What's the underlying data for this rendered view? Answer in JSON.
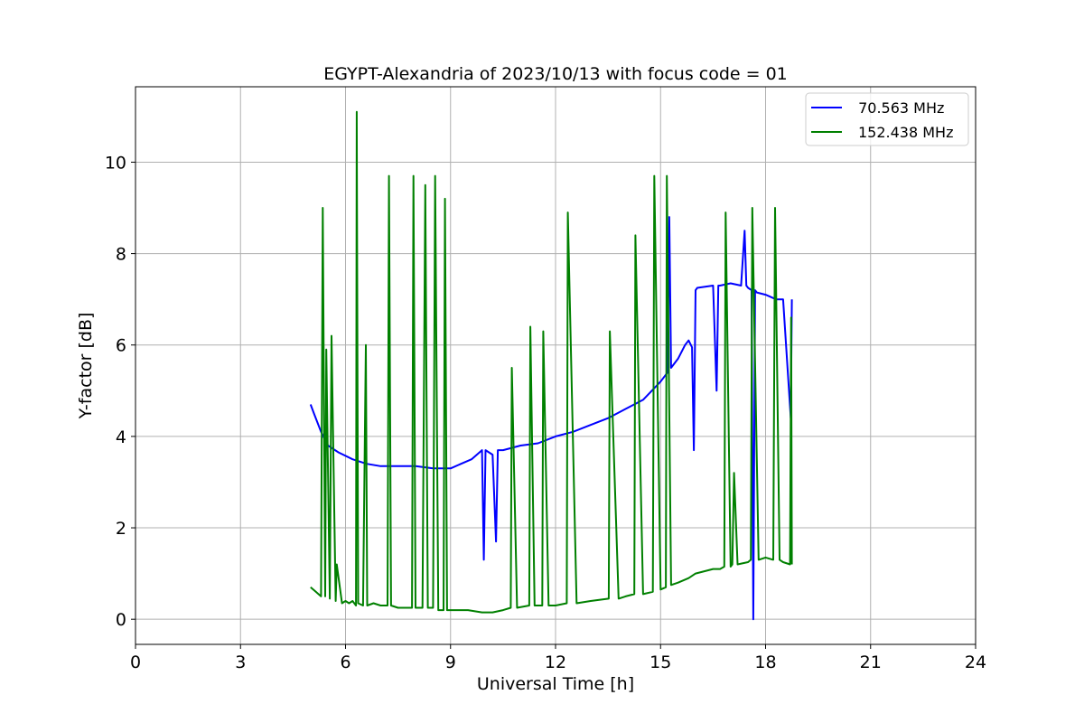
{
  "chart_data": {
    "type": "line",
    "title": "EGYPT-Alexandria of 2023/10/13 with focus code = 01",
    "xlabel": "Universal Time [h]",
    "ylabel": "Y-factor [dB]",
    "xlim": [
      0,
      24
    ],
    "ylim": [
      -0.55,
      11.65
    ],
    "xticks": [
      0,
      3,
      6,
      9,
      12,
      15,
      18,
      21,
      24
    ],
    "yticks": [
      0,
      2,
      4,
      6,
      8,
      10
    ],
    "grid": true,
    "legend_position": "top-right",
    "series": [
      {
        "name": " 70.563 MHz",
        "color": "#0000ff",
        "x": [
          5.0,
          5.1,
          5.3,
          5.5,
          5.8,
          6.2,
          6.6,
          7.0,
          7.5,
          8.0,
          8.5,
          9.0,
          9.3,
          9.6,
          9.9,
          9.95,
          10.0,
          10.2,
          10.3,
          10.35,
          10.5,
          11.0,
          11.5,
          12.0,
          12.5,
          13.0,
          13.5,
          14.0,
          14.5,
          15.0,
          15.2,
          15.25,
          15.3,
          15.5,
          15.7,
          15.8,
          15.9,
          15.95,
          16.0,
          16.05,
          16.5,
          16.6,
          16.65,
          16.7,
          17.0,
          17.3,
          17.4,
          17.45,
          17.5,
          17.6,
          17.65,
          17.7,
          17.75,
          18.0,
          18.3,
          18.5,
          18.72,
          18.75
        ],
        "y": [
          4.7,
          4.5,
          4.1,
          3.8,
          3.65,
          3.5,
          3.4,
          3.35,
          3.35,
          3.35,
          3.3,
          3.3,
          3.4,
          3.5,
          3.7,
          1.3,
          3.7,
          3.6,
          1.7,
          3.7,
          3.7,
          3.8,
          3.85,
          4.0,
          4.1,
          4.25,
          4.4,
          4.6,
          4.8,
          5.2,
          5.4,
          8.8,
          5.5,
          5.7,
          6.0,
          6.1,
          5.95,
          3.7,
          7.2,
          7.25,
          7.3,
          5.0,
          7.3,
          7.3,
          7.35,
          7.3,
          8.5,
          7.3,
          7.25,
          7.2,
          0.0,
          7.2,
          7.15,
          7.1,
          7.0,
          7.0,
          4.4,
          7.0
        ]
      },
      {
        "name": "152.438 MHz",
        "color": "#008000",
        "x": [
          5.0,
          5.15,
          5.3,
          5.35,
          5.42,
          5.45,
          5.55,
          5.6,
          5.72,
          5.75,
          5.9,
          6.0,
          6.1,
          6.2,
          6.3,
          6.32,
          6.36,
          6.5,
          6.58,
          6.62,
          6.8,
          7.0,
          7.2,
          7.24,
          7.3,
          7.5,
          7.7,
          7.9,
          7.94,
          8.0,
          8.2,
          8.28,
          8.35,
          8.5,
          8.56,
          8.65,
          8.8,
          8.84,
          8.9,
          9.2,
          9.5,
          9.9,
          10.2,
          10.5,
          10.72,
          10.75,
          10.9,
          11.25,
          11.28,
          11.4,
          11.62,
          11.65,
          11.8,
          12.0,
          12.32,
          12.35,
          12.6,
          13.0,
          13.52,
          13.55,
          13.8,
          14.0,
          14.25,
          14.28,
          14.5,
          14.78,
          14.82,
          15.0,
          15.15,
          15.18,
          15.3,
          15.5,
          15.8,
          16.0,
          16.25,
          16.5,
          16.7,
          16.82,
          16.86,
          17.0,
          17.05,
          17.1,
          17.2,
          17.5,
          17.58,
          17.62,
          17.8,
          18.0,
          18.22,
          18.27,
          18.4,
          18.5,
          18.7,
          18.73,
          18.75
        ],
        "y": [
          0.7,
          0.6,
          0.5,
          9.0,
          0.5,
          5.9,
          0.45,
          6.2,
          0.4,
          1.2,
          0.35,
          0.4,
          0.35,
          0.4,
          0.3,
          11.1,
          0.35,
          0.3,
          6.0,
          0.3,
          0.35,
          0.3,
          0.3,
          9.7,
          0.3,
          0.25,
          0.25,
          0.25,
          9.7,
          0.25,
          0.25,
          9.5,
          0.25,
          0.25,
          9.7,
          0.2,
          0.2,
          9.2,
          0.2,
          0.2,
          0.2,
          0.15,
          0.15,
          0.2,
          0.25,
          5.5,
          0.25,
          0.3,
          6.4,
          0.3,
          0.3,
          6.3,
          0.3,
          0.3,
          0.35,
          8.9,
          0.35,
          0.4,
          0.45,
          6.3,
          0.45,
          0.5,
          0.55,
          8.4,
          0.55,
          0.6,
          9.7,
          0.65,
          0.7,
          9.7,
          0.75,
          0.8,
          0.9,
          1.0,
          1.05,
          1.1,
          1.1,
          1.15,
          8.9,
          1.15,
          1.2,
          3.2,
          1.2,
          1.25,
          1.3,
          9.0,
          1.3,
          1.35,
          1.3,
          9.0,
          1.3,
          1.25,
          1.2,
          6.6,
          1.2
        ]
      }
    ]
  }
}
